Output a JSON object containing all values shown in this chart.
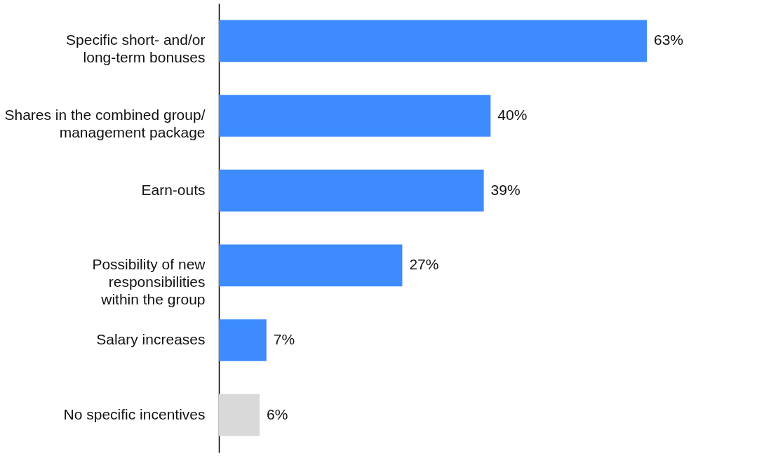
{
  "chart_data": {
    "type": "bar",
    "orientation": "horizontal",
    "categories": [
      "Specific short- and/or\nlong-term bonuses",
      "Shares in the combined group/\nmanagement package",
      "Earn-outs",
      "Possibility of new\nresponsibilities\nwithin the group",
      "Salary increases",
      "No specific incentives"
    ],
    "values": [
      63,
      40,
      39,
      27,
      7,
      6
    ],
    "colors": [
      "#3e8bff",
      "#3e8bff",
      "#3e8bff",
      "#3e8bff",
      "#3e8bff",
      "#d9d9d9"
    ],
    "value_labels": [
      "63%",
      "40%",
      "39%",
      "27%",
      "7%",
      "6%"
    ]
  }
}
